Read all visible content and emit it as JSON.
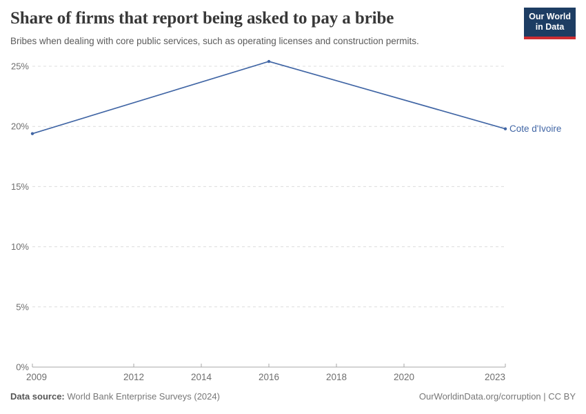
{
  "header": {
    "title": "Share of firms that report being asked to pay a bribe",
    "subtitle": "Bribes when dealing with core public services, such as operating licenses and construction permits.",
    "logo": {
      "line1": "Our World",
      "line2": "in Data"
    }
  },
  "chart_data": {
    "type": "line",
    "title": "Share of firms that report being asked to pay a bribe",
    "xlabel": "",
    "ylabel": "",
    "xlim": [
      2009,
      2023
    ],
    "ylim": [
      0,
      25
    ],
    "x_ticks": [
      2009,
      2012,
      2014,
      2016,
      2018,
      2020,
      2023
    ],
    "y_ticks": [
      0,
      5,
      10,
      15,
      20,
      25
    ],
    "y_suffix": "%",
    "grid": "horizontal-dashed",
    "legend_position": "end-of-line",
    "series": [
      {
        "name": "Cote d'Ivoire",
        "color": "#4166a5",
        "x": [
          2009,
          2016,
          2023
        ],
        "values": [
          19.4,
          25.4,
          19.8
        ]
      }
    ]
  },
  "footer": {
    "datasource_label": "Data source:",
    "datasource_value": "World Bank Enterprise Surveys (2024)",
    "license": "OurWorldinData.org/corruption | CC BY"
  },
  "colors": {
    "accent_line": "#4166a5",
    "logo_bg": "#1d3d63",
    "logo_stripe": "#cd2d32",
    "grid": "#dcdcdc",
    "axis": "#a7a7a7",
    "tick_label": "#6e6e6e"
  }
}
